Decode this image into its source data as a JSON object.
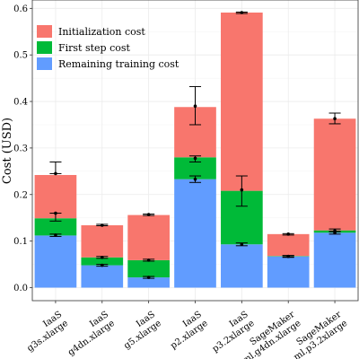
{
  "chart_data": {
    "type": "bar",
    "stacked": true,
    "title": "",
    "xlabel": "",
    "ylabel": "Cost (USD)",
    "ylim": [
      0,
      0.6
    ],
    "yticks": [
      "0.0",
      "0.1",
      "0.2",
      "0.3",
      "0.4",
      "0.5",
      "0.6"
    ],
    "yticks_values": [
      0,
      0.1,
      0.2,
      0.3,
      0.4,
      0.5,
      0.6
    ],
    "grid": true,
    "legend_position": "top-left",
    "categories": [
      [
        "IaaS",
        "g3s.xlarge"
      ],
      [
        "IaaS",
        "g4dn.xlarge"
      ],
      [
        "IaaS",
        "g5.xlarge"
      ],
      [
        "IaaS",
        "p2.xlarge"
      ],
      [
        "IaaS",
        "p3.2xlarge"
      ],
      [
        "SageMaker",
        "ml.g4dn.xlarge"
      ],
      [
        "SageMaker",
        "ml.p3.2xlarge"
      ]
    ],
    "series": [
      {
        "name": "Remaining training cost",
        "color": "#619CFF",
        "values": [
          0.112,
          0.048,
          0.022,
          0.233,
          0.093,
          0.067,
          0.118
        ],
        "error_low": [
          0.11,
          0.046,
          0.02,
          0.226,
          0.09,
          0.065,
          0.115
        ],
        "error_high": [
          0.115,
          0.05,
          0.024,
          0.24,
          0.096,
          0.069,
          0.121
        ]
      },
      {
        "name": "First step cost",
        "color": "#00BA38",
        "values": [
          0.037,
          0.017,
          0.037,
          0.047,
          0.115,
          0.001,
          0.005
        ],
        "error_low": [
          0.143,
          0.063,
          0.057,
          0.27,
          0.175,
          0.066,
          0.12
        ],
        "error_high": [
          0.16,
          0.067,
          0.061,
          0.283,
          0.24,
          0.069,
          0.126
        ]
      },
      {
        "name": "Initialization cost",
        "color": "#F8766D",
        "values": [
          0.093,
          0.069,
          0.097,
          0.108,
          0.383,
          0.047,
          0.24
        ],
        "error_low": [
          0.245,
          0.133,
          0.155,
          0.35,
          0.589,
          0.113,
          0.352
        ],
        "error_high": [
          0.27,
          0.136,
          0.158,
          0.432,
          0.592,
          0.116,
          0.375
        ]
      }
    ],
    "point_markers": [
      [
        0.113,
        0.16,
        0.245
      ],
      [
        0.048,
        0.065,
        0.134
      ],
      [
        0.022,
        0.059,
        0.157
      ],
      [
        0.233,
        0.278,
        0.39
      ],
      [
        0.093,
        0.21,
        0.591
      ],
      [
        0.067,
        0.067,
        0.115
      ],
      [
        0.118,
        0.122,
        0.363
      ]
    ],
    "legend_order": [
      "Initialization cost",
      "First step cost",
      "Remaining training cost"
    ]
  }
}
